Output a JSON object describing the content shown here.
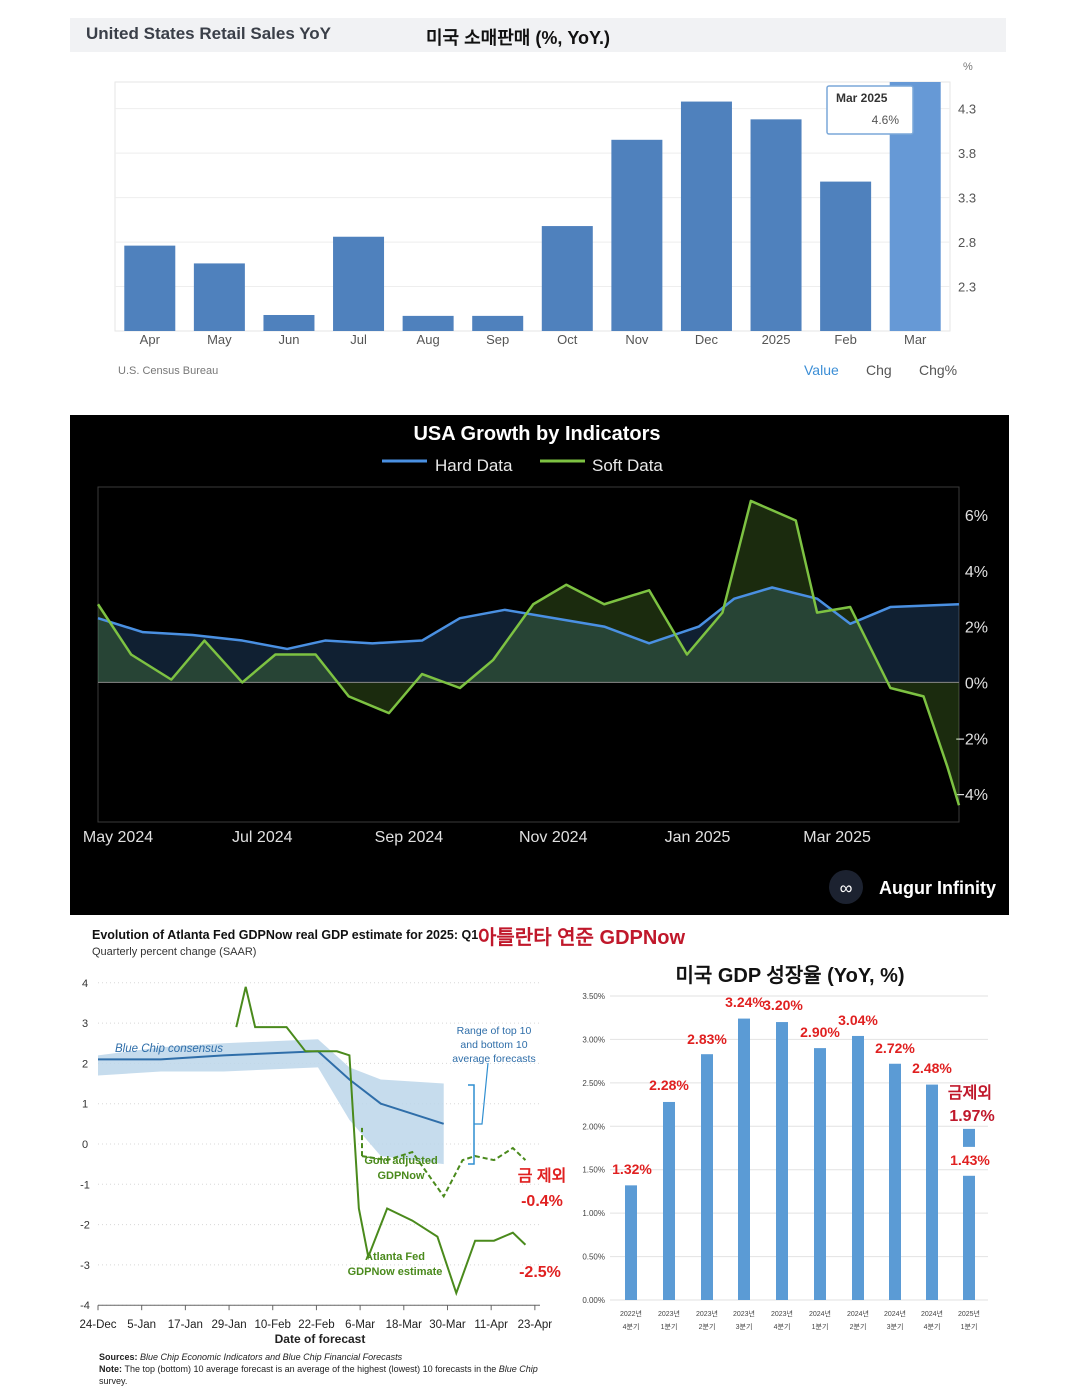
{
  "retail": {
    "title_en": "United States Retail Sales YoY",
    "title_ko": "미국 소매판매 (%, YoY.)",
    "unit": "%",
    "source": "U.S. Census Bureau",
    "tabs": [
      "Value",
      "Chg",
      "Chg%"
    ],
    "tooltip": {
      "label": "Mar 2025",
      "value": "4.6%"
    }
  },
  "growth": {
    "title": "USA Growth by Indicators",
    "legend": [
      "Hard Data",
      "Soft Data"
    ],
    "brand": "Augur Infinity"
  },
  "gdpnow": {
    "title": "Evolution of Atlanta Fed GDPNow real GDP estimate for 2025: Q1",
    "subtitle": "Quarterly percent change (SAAR)",
    "title_ko": "아틀란타 연준 GDPNow",
    "xlabel": "Date of forecast",
    "label_bluechip": "Blue Chip consensus",
    "label_range": [
      "Range of top 10",
      "and bottom 10",
      "average forecasts"
    ],
    "label_gold": [
      "Gold adjusted",
      "GDPNow"
    ],
    "label_gdpnow": [
      "Atlanta Fed",
      "GDPNow estimate"
    ],
    "note_gold": [
      "금 제외",
      "-0.4%"
    ],
    "note_gdpnow": "-2.5%",
    "sources_label": "Sources:",
    "sources_text": "Blue Chip Economic Indicators and Blue Chip Financial Forecasts",
    "note_label": "Note:",
    "note_text": "The top (bottom) 10 average forecast is an average of the highest (lowest) 10 forecasts in the",
    "note_text_italic": "Blue Chip",
    "note_text2": "survey."
  },
  "gdpyoy": {
    "title": "미국 GDP 성장율 (YoY, %)",
    "ex_gold_label": "금제외",
    "ex_gold_value": "1.97%"
  },
  "chart_data": [
    {
      "type": "bar",
      "title": "United States Retail Sales YoY",
      "categories": [
        "Apr",
        "May",
        "Jun",
        "Jul",
        "Aug",
        "Sep",
        "Oct",
        "Nov",
        "Dec",
        "2025",
        "Feb",
        "Mar"
      ],
      "values": [
        2.76,
        2.56,
        1.98,
        2.86,
        1.97,
        1.97,
        2.98,
        3.95,
        4.38,
        4.18,
        3.48,
        4.6
      ],
      "yticks": [
        2.3,
        2.8,
        3.3,
        3.8,
        4.3
      ],
      "ylim": [
        1.8,
        4.6
      ],
      "color": "#4f81bd",
      "highlight_color": "#6699d6"
    },
    {
      "type": "line",
      "title": "USA Growth by Indicators",
      "xticks": [
        "May 2024",
        "Jul 2024",
        "Sep 2024",
        "Nov 2024",
        "Jan 2025",
        "Mar 2025"
      ],
      "yticks": [
        "6%",
        "4%",
        "2%",
        "0%",
        "−2%",
        "−4%"
      ],
      "ylim": [
        -5,
        7
      ],
      "x_range": [
        "2024-05-01",
        "2025-04-30"
      ],
      "series": [
        {
          "name": "Hard Data",
          "color": "#4a90e2",
          "x": [
            "2024-05-01",
            "2024-05-20",
            "2024-06-10",
            "2024-07-01",
            "2024-07-20",
            "2024-08-05",
            "2024-08-25",
            "2024-09-15",
            "2024-10-01",
            "2024-10-20",
            "2024-11-10",
            "2024-12-01",
            "2024-12-20",
            "2025-01-10",
            "2025-01-25",
            "2025-02-10",
            "2025-03-01",
            "2025-03-15",
            "2025-04-01",
            "2025-04-30"
          ],
          "y": [
            2.3,
            1.8,
            1.7,
            1.5,
            1.2,
            1.5,
            1.4,
            1.5,
            2.3,
            2.6,
            2.3,
            2.0,
            1.4,
            2.0,
            3.0,
            3.4,
            3.0,
            2.1,
            2.7,
            2.8
          ]
        },
        {
          "name": "Soft Data",
          "color": "#7dc242",
          "x": [
            "2024-05-01",
            "2024-05-15",
            "2024-06-01",
            "2024-06-15",
            "2024-07-01",
            "2024-07-15",
            "2024-08-01",
            "2024-08-15",
            "2024-09-01",
            "2024-09-15",
            "2024-10-01",
            "2024-10-15",
            "2024-11-01",
            "2024-11-15",
            "2024-12-01",
            "2024-12-20",
            "2025-01-05",
            "2025-01-20",
            "2025-02-01",
            "2025-02-20",
            "2025-03-01",
            "2025-03-15",
            "2025-04-01",
            "2025-04-15",
            "2025-04-25",
            "2025-04-30"
          ],
          "y": [
            2.8,
            1.0,
            0.1,
            1.5,
            0.0,
            1.0,
            1.0,
            -0.5,
            -1.1,
            0.3,
            -0.2,
            0.8,
            2.8,
            3.5,
            2.8,
            3.3,
            1.0,
            2.5,
            6.5,
            5.8,
            2.5,
            2.7,
            -0.2,
            -0.5,
            -3.0,
            -4.4
          ]
        }
      ]
    },
    {
      "type": "line",
      "title": "Evolution of Atlanta Fed GDPNow real GDP estimate for 2025: Q1",
      "ylabel": "Quarterly percent change (SAAR)",
      "xlabel": "Date of forecast",
      "xticks": [
        "24-Dec",
        "5-Jan",
        "17-Jan",
        "29-Jan",
        "10-Feb",
        "22-Feb",
        "6-Mar",
        "18-Mar",
        "30-Mar",
        "11-Apr",
        "23-Apr"
      ],
      "yticks": [
        4,
        3,
        2,
        1,
        0,
        -1,
        -2,
        -3,
        -4
      ],
      "ylim": [
        -4,
        4
      ],
      "series": [
        {
          "name": "Blue Chip consensus",
          "x": [
            0,
            10,
            20,
            35,
            40,
            45,
            55
          ],
          "y": [
            2.1,
            2.1,
            2.2,
            2.3,
            1.6,
            1.0,
            0.5
          ]
        },
        {
          "name": "Range of top 10 and bottom 10 average forecasts",
          "upper": [
            2.2,
            2.4,
            2.5,
            2.6,
            1.9,
            1.6,
            1.5
          ],
          "lower": [
            1.7,
            1.8,
            1.8,
            1.9,
            0.6,
            -0.3,
            -0.5
          ]
        },
        {
          "name": "Gold adjusted GDPNow",
          "x": [
            42,
            46,
            50,
            55,
            58,
            60,
            63,
            66,
            68
          ],
          "y": [
            -0.3,
            -0.4,
            -0.2,
            -1.3,
            -0.4,
            -0.3,
            -0.4,
            -0.1,
            -0.4
          ]
        },
        {
          "name": "Atlanta Fed GDPNow estimate",
          "x": [
            22,
            23.5,
            25,
            30,
            33,
            38,
            40,
            41.5,
            43,
            46,
            50,
            54,
            57,
            60,
            63,
            66,
            68
          ],
          "y": [
            2.9,
            3.9,
            2.9,
            2.9,
            2.3,
            2.3,
            2.2,
            -1.6,
            -2.8,
            -1.6,
            -1.9,
            -2.3,
            -3.7,
            -2.4,
            -2.4,
            -2.2,
            -2.5
          ]
        }
      ]
    },
    {
      "type": "bar",
      "title": "미국 GDP 성장율 (YoY, %)",
      "categories": [
        "2022년 4분기",
        "2023년 1분기",
        "2023년 2분기",
        "2023년 3분기",
        "2023년 4분기",
        "2024년 1분기",
        "2024년 2분기",
        "2024년 3분기",
        "2024년 4분기",
        "2025년 1분기"
      ],
      "values": [
        1.32,
        2.28,
        2.83,
        3.24,
        3.2,
        2.9,
        3.04,
        2.72,
        2.48,
        1.43
      ],
      "labels": [
        "1.32%",
        "2.28%",
        "2.83%",
        "3.24%",
        "3.20%",
        "2.90%",
        "3.04%",
        "2.72%",
        "2.48%",
        "1.43%"
      ],
      "extra_bar": {
        "label": "1.97%",
        "value": 1.97
      },
      "yticks": [
        "0.00%",
        "0.50%",
        "1.00%",
        "1.50%",
        "2.00%",
        "2.50%",
        "3.00%",
        "3.50%"
      ],
      "ylim": [
        0,
        3.5
      ],
      "color": "#5b9bd5",
      "label_color": "#e02020"
    }
  ]
}
